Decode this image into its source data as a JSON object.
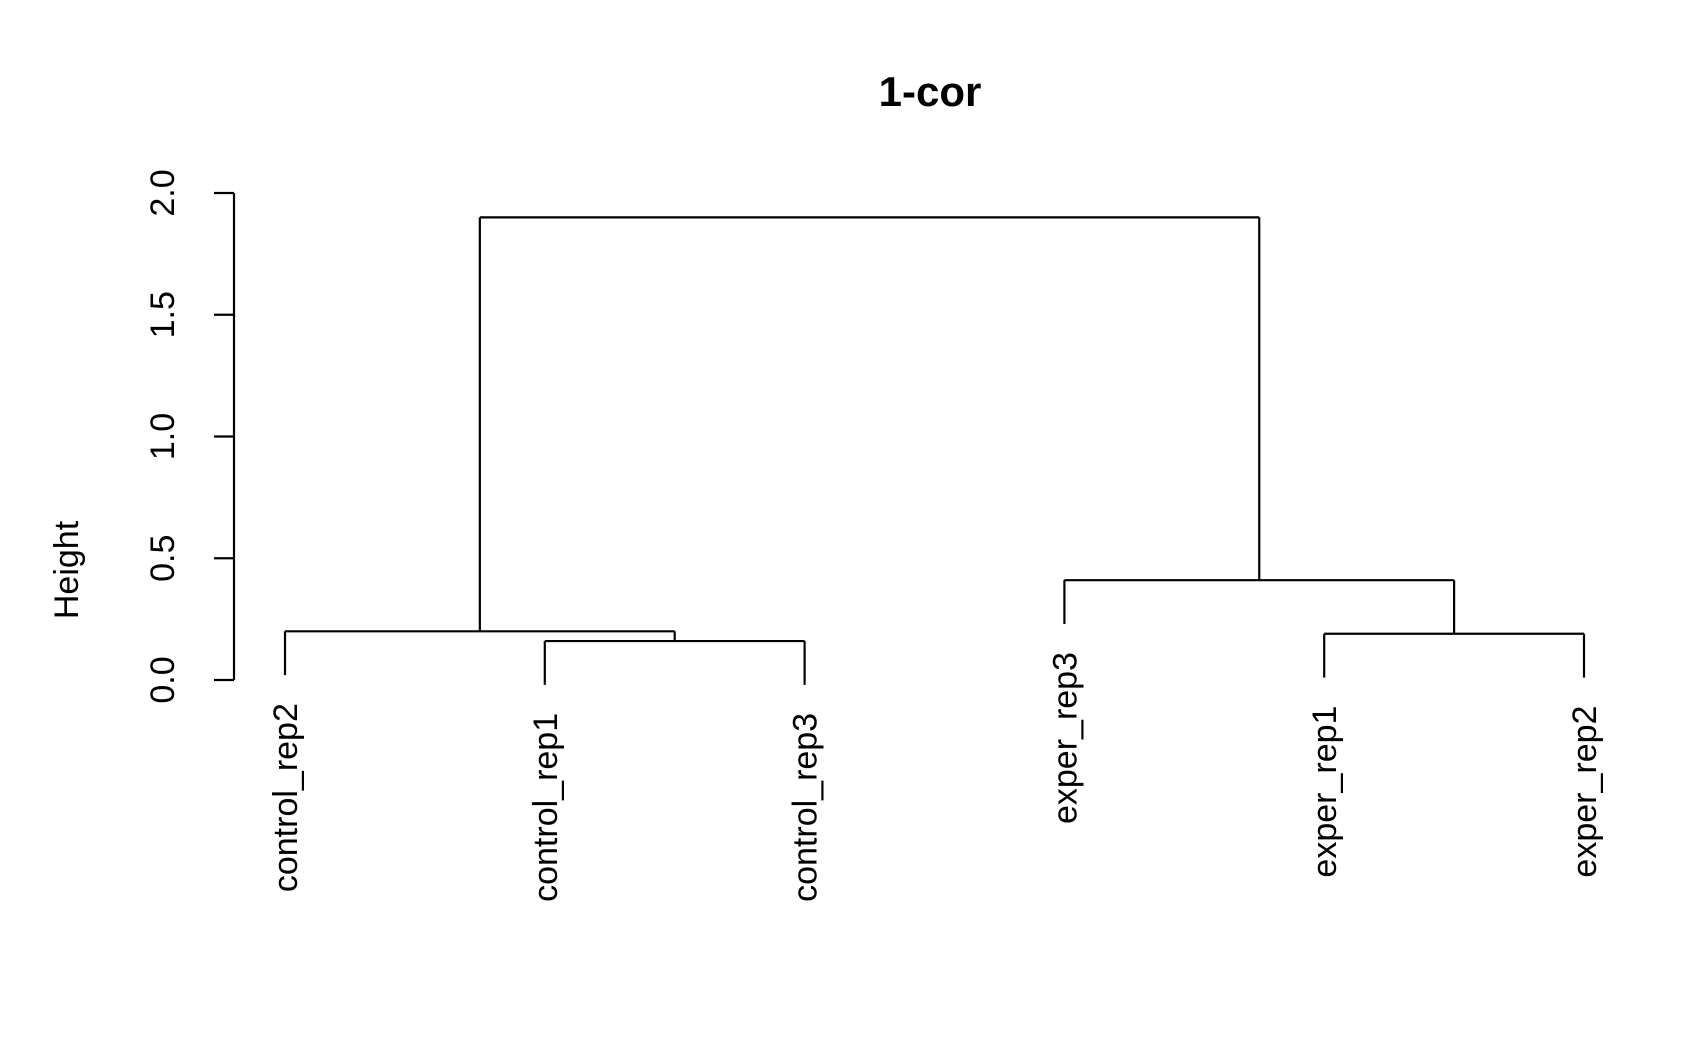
{
  "chart_data": {
    "type": "dendrogram",
    "title": "1-cor",
    "ylabel": "Height",
    "xlabel": "",
    "ylim": [
      0,
      2
    ],
    "yticks": [
      "0.0",
      "0.5",
      "1.0",
      "1.5",
      "2.0"
    ],
    "leaves": [
      "control_rep2",
      "control_rep1",
      "control_rep3",
      "exper_rep3",
      "exper_rep1",
      "exper_rep2"
    ],
    "merges": [
      {
        "left": "control_rep1",
        "right": "control_rep3",
        "height": 0.16
      },
      {
        "left": "exper_rep1",
        "right": "exper_rep2",
        "height": 0.19
      },
      {
        "left": "control_rep2",
        "right": "control_rep1+control_rep3",
        "height": 0.2
      },
      {
        "left": "exper_rep3",
        "right": "exper_rep1+exper_rep2",
        "height": 0.41
      },
      {
        "left": "control",
        "right": "exper",
        "height": 1.9
      }
    ],
    "leaf_heights": {
      "control_rep2": 0.02,
      "control_rep1": -0.02,
      "control_rep3": -0.02,
      "exper_rep3": 0.23,
      "exper_rep1": 0.01,
      "exper_rep2": 0.01
    },
    "colors": {
      "line": "#000000",
      "background": "#ffffff"
    }
  }
}
